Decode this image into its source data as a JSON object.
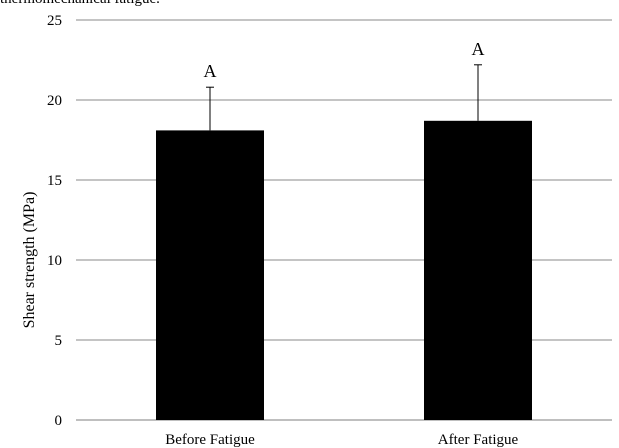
{
  "caption_fragment": "thermomechanical fatigue.",
  "chart_data": {
    "type": "bar",
    "title": "",
    "xlabel": "",
    "ylabel": "Shear strength (MPa)",
    "ylim": [
      0,
      25
    ],
    "yticks": [
      0,
      5,
      10,
      15,
      20,
      25
    ],
    "grid": true,
    "legend": "none",
    "categories": [
      "Before Fatigue",
      "After Fatigue"
    ],
    "series": [
      {
        "values": [
          18.1,
          18.7
        ],
        "error": [
          2.7,
          3.5
        ],
        "significance_labels": [
          "A",
          "A"
        ],
        "color": "#000000"
      }
    ]
  }
}
